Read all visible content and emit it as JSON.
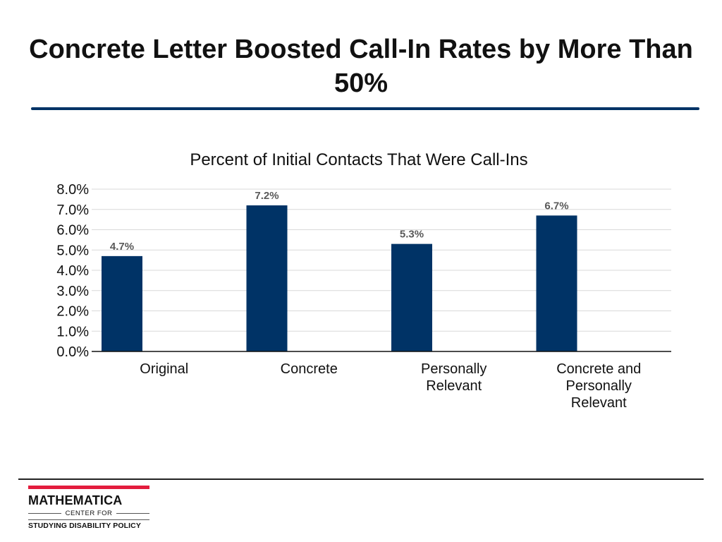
{
  "slide": {
    "title": "Concrete Letter Boosted Call-In Rates by More Than 50%"
  },
  "footer": {
    "logo_name": "MATHEMATICA",
    "logo_line2": "CENTER FOR",
    "logo_line3": "STUDYING DISABILITY POLICY"
  },
  "colors": {
    "bar": "#003366",
    "rule": "#003366",
    "logo_accent": "#e31c3d"
  },
  "chart_data": {
    "type": "bar",
    "title": "Percent of Initial Contacts That Were Call-Ins",
    "categories": [
      [
        "Original"
      ],
      [
        "Concrete"
      ],
      [
        "Personally",
        "Relevant"
      ],
      [
        "Concrete and",
        "Personally",
        "Relevant"
      ]
    ],
    "values": [
      4.7,
      7.2,
      5.3,
      6.7
    ],
    "data_labels": [
      "4.7%",
      "7.2%",
      "5.3%",
      "6.7%"
    ],
    "ylim": [
      0,
      8
    ],
    "ytick_values": [
      0,
      1,
      2,
      3,
      4,
      5,
      6,
      7,
      8
    ],
    "ytick_labels": [
      "0.0%",
      "1.0%",
      "2.0%",
      "3.0%",
      "4.0%",
      "5.0%",
      "6.0%",
      "7.0%",
      "8.0%"
    ],
    "xlabel": "",
    "ylabel": "",
    "grid": true,
    "legend": "none"
  }
}
